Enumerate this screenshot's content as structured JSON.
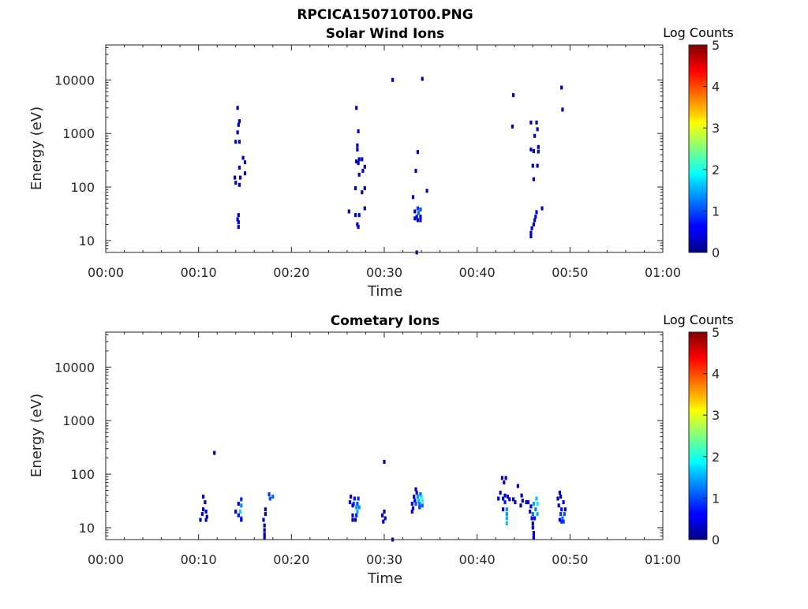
{
  "figure_title": "RPCICA150710T00.PNG",
  "chart_data": [
    {
      "type": "heatmap",
      "title": "Solar Wind Ions",
      "xlabel": "Time",
      "ylabel": "Energy (eV)",
      "x_tick_labels": [
        "00:00",
        "00:10",
        "00:20",
        "00:30",
        "00:40",
        "00:50",
        "01:00"
      ],
      "x_tick_minutes": [
        0,
        10,
        20,
        30,
        40,
        50,
        60
      ],
      "xlim_minutes": [
        0,
        60
      ],
      "y_tick_labels": [
        "10",
        "100",
        "1000",
        "10000"
      ],
      "y_tick_values": [
        10,
        100,
        1000,
        10000
      ],
      "y_scale": "log",
      "ylim": [
        6,
        45000
      ],
      "colorbar": {
        "label": "Log Counts",
        "tick_labels": [
          "0",
          "1",
          "2",
          "3",
          "4",
          "5"
        ],
        "range": [
          0,
          5
        ],
        "colormap": "jet"
      },
      "points": [
        [
          14.2,
          3000,
          0.3
        ],
        [
          14.4,
          1700,
          0.3
        ],
        [
          14.3,
          1450,
          0.3
        ],
        [
          14.2,
          1050,
          0.3
        ],
        [
          14.0,
          700,
          0.3
        ],
        [
          14.4,
          700,
          0.3
        ],
        [
          14.8,
          350,
          0.3
        ],
        [
          15.0,
          290,
          0.3
        ],
        [
          14.4,
          230,
          0.3
        ],
        [
          15.0,
          180,
          0.3
        ],
        [
          13.9,
          150,
          0.3
        ],
        [
          14.5,
          150,
          0.3
        ],
        [
          14.0,
          120,
          0.3
        ],
        [
          14.4,
          110,
          0.3
        ],
        [
          14.3,
          30,
          0.4
        ],
        [
          14.2,
          25,
          0.5
        ],
        [
          14.3,
          22,
          0.5
        ],
        [
          14.3,
          18,
          0.5
        ],
        [
          27.0,
          3000,
          0.3
        ],
        [
          27.2,
          1100,
          0.3
        ],
        [
          27.1,
          600,
          0.3
        ],
        [
          27.1,
          500,
          0.3
        ],
        [
          27.3,
          330,
          0.3
        ],
        [
          27.6,
          330,
          0.3
        ],
        [
          27.0,
          300,
          0.3
        ],
        [
          27.2,
          280,
          0.3
        ],
        [
          27.9,
          240,
          0.3
        ],
        [
          27.7,
          200,
          0.3
        ],
        [
          27.3,
          170,
          0.3
        ],
        [
          26.9,
          95,
          0.3
        ],
        [
          27.9,
          95,
          0.3
        ],
        [
          27.6,
          80,
          0.3
        ],
        [
          27.9,
          40,
          0.3
        ],
        [
          26.2,
          35,
          0.3
        ],
        [
          26.9,
          30,
          0.4
        ],
        [
          27.3,
          30,
          0.5
        ],
        [
          27.1,
          20,
          0.5
        ],
        [
          27.2,
          18,
          0.5
        ],
        [
          30.9,
          10000,
          0.3
        ],
        [
          34.1,
          10500,
          0.3
        ],
        [
          33.6,
          450,
          0.3
        ],
        [
          33.4,
          200,
          0.3
        ],
        [
          34.6,
          85,
          0.3
        ],
        [
          33.1,
          65,
          0.3
        ],
        [
          33.3,
          35,
          0.4
        ],
        [
          33.6,
          40,
          0.9
        ],
        [
          33.9,
          38,
          1.0
        ],
        [
          33.7,
          33,
          1.1
        ],
        [
          33.5,
          28,
          0.7
        ],
        [
          33.9,
          28,
          0.5
        ],
        [
          33.3,
          26,
          0.4
        ],
        [
          33.6,
          24,
          0.3
        ],
        [
          33.9,
          24,
          0.3
        ],
        [
          33.5,
          6,
          0.3
        ],
        [
          43.9,
          5200,
          0.3
        ],
        [
          43.8,
          1350,
          0.3
        ],
        [
          45.8,
          1600,
          0.3
        ],
        [
          46.4,
          1600,
          0.3
        ],
        [
          46.5,
          1200,
          0.3
        ],
        [
          46.2,
          900,
          0.3
        ],
        [
          46.6,
          560,
          0.3
        ],
        [
          45.8,
          500,
          0.3
        ],
        [
          46.1,
          470,
          0.3
        ],
        [
          46.6,
          460,
          0.3
        ],
        [
          46.0,
          250,
          0.3
        ],
        [
          46.5,
          250,
          0.3
        ],
        [
          46.1,
          140,
          0.3
        ],
        [
          47.0,
          40,
          0.4
        ],
        [
          46.4,
          34,
          0.5
        ],
        [
          46.3,
          28,
          0.6
        ],
        [
          46.2,
          24,
          0.5
        ],
        [
          46.1,
          20,
          0.4
        ],
        [
          45.9,
          17,
          0.3
        ],
        [
          45.8,
          14,
          0.4
        ],
        [
          45.8,
          12,
          0.4
        ],
        [
          49.1,
          7200,
          0.3
        ],
        [
          49.2,
          2800,
          0.3
        ]
      ]
    },
    {
      "type": "heatmap",
      "title": "Cometary Ions",
      "xlabel": "Time",
      "ylabel": "Energy (eV)",
      "x_tick_labels": [
        "00:00",
        "00:10",
        "00:20",
        "00:30",
        "00:40",
        "00:50",
        "01:00"
      ],
      "x_tick_minutes": [
        0,
        10,
        20,
        30,
        40,
        50,
        60
      ],
      "xlim_minutes": [
        0,
        60
      ],
      "y_tick_labels": [
        "10",
        "100",
        "1000",
        "10000"
      ],
      "y_tick_values": [
        10,
        100,
        1000,
        10000
      ],
      "y_scale": "log",
      "ylim": [
        6,
        45000
      ],
      "colorbar": {
        "label": "Log Counts",
        "tick_labels": [
          "0",
          "1",
          "2",
          "3",
          "4",
          "5"
        ],
        "range": [
          0,
          5
        ],
        "colormap": "jet"
      },
      "points": [
        [
          11.7,
          250,
          0.3
        ],
        [
          30.0,
          170,
          0.3
        ],
        [
          10.5,
          38,
          0.4
        ],
        [
          10.7,
          30,
          0.3
        ],
        [
          10.5,
          22,
          0.3
        ],
        [
          10.8,
          20,
          0.6
        ],
        [
          10.4,
          18,
          0.4
        ],
        [
          10.9,
          16,
          0.3
        ],
        [
          10.2,
          14,
          0.3
        ],
        [
          10.8,
          14,
          0.3
        ],
        [
          14.6,
          34,
          0.8
        ],
        [
          14.3,
          28,
          0.5
        ],
        [
          14.6,
          26,
          1.3
        ],
        [
          14.0,
          20,
          0.4
        ],
        [
          14.5,
          20,
          1.7
        ],
        [
          14.3,
          17,
          0.7
        ],
        [
          14.6,
          15,
          0.9
        ],
        [
          14.6,
          14,
          0.5
        ],
        [
          17.6,
          42,
          0.9
        ],
        [
          18.0,
          38,
          1.1
        ],
        [
          17.7,
          35,
          1.0
        ],
        [
          17.2,
          22,
          0.3
        ],
        [
          17.2,
          18,
          0.3
        ],
        [
          17.0,
          14,
          0.3
        ],
        [
          17.1,
          11,
          0.3
        ],
        [
          17.1,
          9,
          0.3
        ],
        [
          17.1,
          7.5,
          0.3
        ],
        [
          17.1,
          6.5,
          0.3
        ],
        [
          26.4,
          38,
          0.4
        ],
        [
          26.8,
          35,
          0.7
        ],
        [
          27.2,
          35,
          0.8
        ],
        [
          26.3,
          30,
          0.5
        ],
        [
          26.7,
          28,
          0.9
        ],
        [
          27.1,
          28,
          1.0
        ],
        [
          26.6,
          26,
          0.5
        ],
        [
          27.0,
          24,
          1.4
        ],
        [
          27.3,
          24,
          1.3
        ],
        [
          27.1,
          20,
          1.5
        ],
        [
          26.6,
          17,
          0.5
        ],
        [
          27.0,
          17,
          0.8
        ],
        [
          26.6,
          14,
          0.3
        ],
        [
          26.9,
          14,
          0.3
        ],
        [
          30.0,
          20,
          0.3
        ],
        [
          29.8,
          17,
          0.4
        ],
        [
          30.1,
          15,
          0.4
        ],
        [
          29.9,
          13,
          0.3
        ],
        [
          30.9,
          6,
          0.3
        ],
        [
          33.4,
          52,
          0.3
        ],
        [
          33.5,
          45,
          0.7
        ],
        [
          33.9,
          42,
          1.1
        ],
        [
          33.2,
          38,
          0.4
        ],
        [
          33.6,
          38,
          1.4
        ],
        [
          34.0,
          38,
          1.8
        ],
        [
          33.3,
          32,
          0.6
        ],
        [
          33.7,
          32,
          1.6
        ],
        [
          34.1,
          32,
          1.9
        ],
        [
          33.0,
          28,
          0.4
        ],
        [
          33.4,
          28,
          1.0
        ],
        [
          33.8,
          28,
          1.2
        ],
        [
          34.1,
          26,
          1.1
        ],
        [
          33.1,
          23,
          0.3
        ],
        [
          33.8,
          24,
          0.9
        ],
        [
          33.0,
          20,
          0.3
        ],
        [
          42.7,
          85,
          0.3
        ],
        [
          43.1,
          85,
          0.3
        ],
        [
          42.9,
          70,
          0.3
        ],
        [
          42.5,
          45,
          0.4
        ],
        [
          43.0,
          40,
          0.6
        ],
        [
          43.3,
          38,
          0.5
        ],
        [
          44.4,
          60,
          0.3
        ],
        [
          42.3,
          35,
          0.4
        ],
        [
          42.8,
          35,
          0.4
        ],
        [
          43.0,
          30,
          0.7
        ],
        [
          43.5,
          34,
          0.4
        ],
        [
          43.9,
          34,
          0.3
        ],
        [
          44.1,
          30,
          0.3
        ],
        [
          44.8,
          40,
          0.3
        ],
        [
          44.9,
          32,
          0.4
        ],
        [
          45.3,
          30,
          0.5
        ],
        [
          42.8,
          22,
          0.4
        ],
        [
          43.2,
          22,
          1.3
        ],
        [
          43.2,
          18,
          1.4
        ],
        [
          43.2,
          15,
          1.5
        ],
        [
          43.2,
          12,
          1.6
        ],
        [
          44.7,
          26,
          0.3
        ],
        [
          45.5,
          30,
          0.4
        ],
        [
          45.8,
          25,
          0.6
        ],
        [
          46.1,
          28,
          1.4
        ],
        [
          46.4,
          35,
          1.6
        ],
        [
          46.5,
          28,
          1.8
        ],
        [
          46.3,
          22,
          1.3
        ],
        [
          45.7,
          20,
          0.5
        ],
        [
          46.0,
          18,
          1.2
        ],
        [
          46.5,
          18,
          1.5
        ],
        [
          45.9,
          15,
          0.5
        ],
        [
          46.2,
          15,
          0.7
        ],
        [
          46.0,
          12,
          0.4
        ],
        [
          46.0,
          10,
          0.4
        ],
        [
          46.1,
          8,
          0.5
        ],
        [
          46.1,
          7,
          0.5
        ],
        [
          46.1,
          6.5,
          0.5
        ],
        [
          48.9,
          45,
          0.3
        ],
        [
          49.0,
          38,
          0.4
        ],
        [
          48.7,
          35,
          0.3
        ],
        [
          49.3,
          30,
          0.4
        ],
        [
          48.8,
          26,
          0.5
        ],
        [
          49.1,
          22,
          0.7
        ],
        [
          49.5,
          22,
          0.5
        ],
        [
          49.0,
          18,
          0.9
        ],
        [
          49.4,
          18,
          1.0
        ],
        [
          49.2,
          15,
          1.2
        ],
        [
          48.9,
          14,
          0.4
        ],
        [
          49.1,
          13,
          0.8
        ],
        [
          49.3,
          13,
          0.9
        ]
      ]
    }
  ]
}
